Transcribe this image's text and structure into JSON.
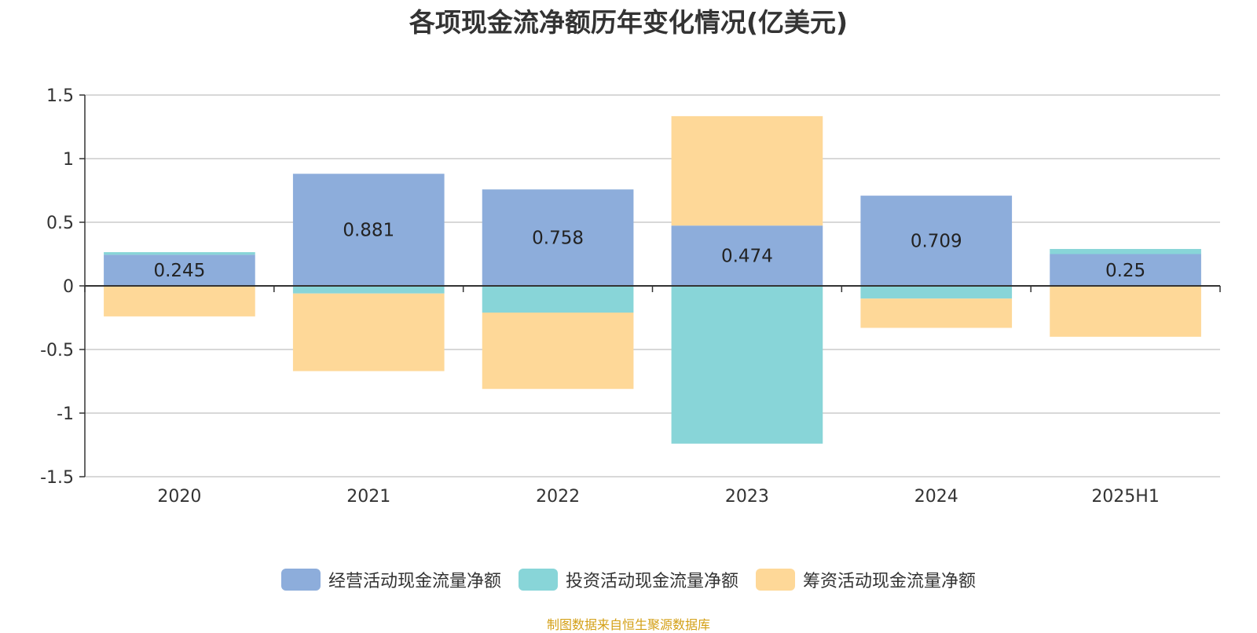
{
  "title": "各项现金流净额历年变化情况(亿美元)",
  "source": "制图数据来自恒生聚源数据库",
  "chart_data": {
    "type": "bar",
    "stacked": true,
    "title": "各项现金流净额历年变化情况(亿美元)",
    "categories": [
      "2020",
      "2021",
      "2022",
      "2023",
      "2024",
      "2025H1"
    ],
    "ylim": [
      -1.5,
      1.5
    ],
    "yticks": [
      "1.5",
      "1",
      "0.5",
      "0",
      "-0.5",
      "-1",
      "-1.5"
    ],
    "ytick_values": [
      1.5,
      1,
      0.5,
      0,
      -0.5,
      -1,
      -1.5
    ],
    "grid": true,
    "legend_position": "bottom",
    "series": [
      {
        "name": "经营活动现金流量净额",
        "color": "#8daddb",
        "values": [
          0.245,
          0.881,
          0.758,
          0.474,
          0.709,
          0.25
        ],
        "labels": [
          "0.245",
          "0.881",
          "0.758",
          "0.474",
          "0.709",
          "0.25"
        ]
      },
      {
        "name": "投资活动现金流量净额",
        "color": "#88d5d8",
        "values": [
          0.02,
          -0.06,
          -0.21,
          -1.24,
          -0.1,
          0.04
        ]
      },
      {
        "name": "筹资活动现金流量净额",
        "color": "#fed898",
        "values": [
          -0.24,
          -0.61,
          -0.6,
          0.86,
          -0.23,
          -0.4
        ]
      }
    ]
  }
}
